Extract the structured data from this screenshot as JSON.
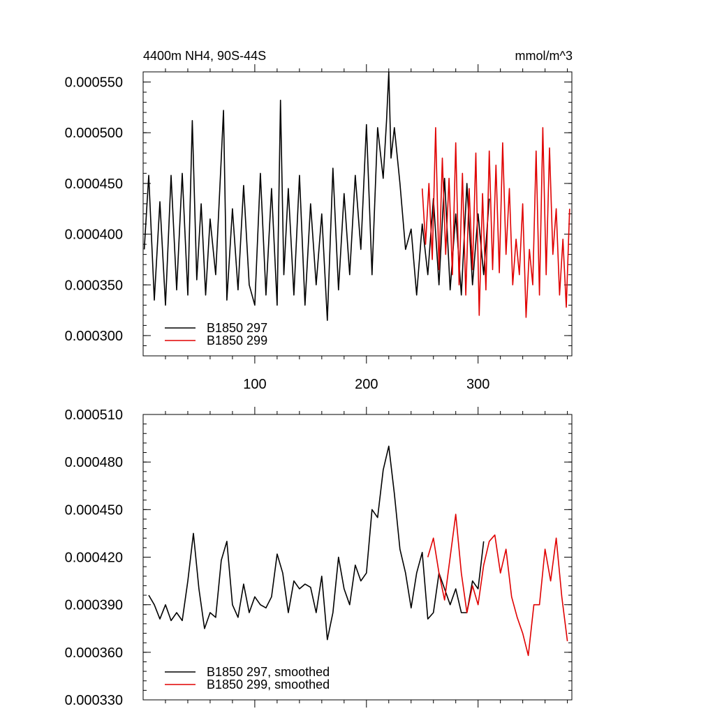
{
  "chart_data": [
    {
      "type": "line",
      "title_left": "4400m NH4, 90S-44S",
      "title_right": "mmol/m^3",
      "xlim": [
        0,
        384
      ],
      "ylim": [
        0.00028,
        0.00056
      ],
      "xticks": [
        100,
        200,
        300
      ],
      "xtick_labels": [
        "100",
        "200",
        "300"
      ],
      "yticks": [
        0.0003,
        0.00035,
        0.0004,
        0.00045,
        0.0005,
        0.00055
      ],
      "ytick_labels": [
        "0.000300",
        "0.000350",
        "0.000400",
        "0.000450",
        "0.000500",
        "0.000550"
      ],
      "legend_position": "bottom-left",
      "series": [
        {
          "name": "B1850 297",
          "color": "#000000",
          "x": [
            1,
            5,
            10,
            15,
            20,
            25,
            30,
            35,
            40,
            44,
            48,
            52,
            56,
            60,
            65,
            70,
            72,
            75,
            80,
            85,
            90,
            95,
            100,
            105,
            110,
            115,
            120,
            123,
            126,
            130,
            135,
            140,
            145,
            150,
            155,
            160,
            165,
            170,
            175,
            180,
            185,
            190,
            195,
            200,
            205,
            210,
            215,
            218,
            220,
            222,
            225,
            230,
            235,
            240,
            245,
            250,
            255,
            260,
            265,
            270,
            275,
            280,
            285,
            290,
            295,
            300,
            305,
            310
          ],
          "values": [
            0.000385,
            0.000458,
            0.000335,
            0.000432,
            0.00033,
            0.000458,
            0.000345,
            0.00046,
            0.00034,
            0.000512,
            0.000355,
            0.00043,
            0.00034,
            0.000415,
            0.00036,
            0.000475,
            0.000522,
            0.000335,
            0.000425,
            0.000345,
            0.000448,
            0.00035,
            0.00033,
            0.00046,
            0.00034,
            0.000445,
            0.00033,
            0.000532,
            0.00036,
            0.000445,
            0.00034,
            0.000458,
            0.00033,
            0.00043,
            0.00035,
            0.00042,
            0.000315,
            0.000465,
            0.000345,
            0.00044,
            0.00036,
            0.000458,
            0.000385,
            0.000508,
            0.00036,
            0.000505,
            0.000455,
            0.000512,
            0.00056,
            0.000475,
            0.000505,
            0.00045,
            0.000385,
            0.000405,
            0.00034,
            0.00041,
            0.00036,
            0.000435,
            0.00035,
            0.000455,
            0.000345,
            0.00042,
            0.00034,
            0.00045,
            0.00035,
            0.00042,
            0.00036,
            0.000435
          ]
        },
        {
          "name": "B1850 299",
          "color": "#e00000",
          "x": [
            250,
            253,
            256,
            259,
            262,
            265,
            268,
            271,
            274,
            277,
            280,
            283,
            286,
            289,
            292,
            295,
            298,
            301,
            304,
            307,
            310,
            313,
            316,
            319,
            322,
            325,
            328,
            331,
            334,
            337,
            340,
            343,
            346,
            349,
            352,
            355,
            358,
            361,
            364,
            367,
            370,
            373,
            376,
            379,
            382
          ],
          "values": [
            0.000445,
            0.00039,
            0.00045,
            0.000375,
            0.000505,
            0.000365,
            0.000475,
            0.00038,
            0.000455,
            0.00036,
            0.00049,
            0.00035,
            0.00046,
            0.00034,
            0.000445,
            0.000365,
            0.00048,
            0.00032,
            0.00044,
            0.000345,
            0.000482,
            0.000365,
            0.000468,
            0.000362,
            0.00049,
            0.00038,
            0.000445,
            0.00035,
            0.000395,
            0.00036,
            0.00043,
            0.000318,
            0.000385,
            0.00035,
            0.000482,
            0.00034,
            0.000505,
            0.00036,
            0.000485,
            0.00038,
            0.000425,
            0.00034,
            0.000395,
            0.000328,
            0.000425
          ]
        }
      ]
    },
    {
      "type": "line",
      "xlim": [
        0,
        384
      ],
      "ylim": [
        0.00033,
        0.00051
      ],
      "xticks": [
        100,
        200,
        300
      ],
      "yticks": [
        0.00033,
        0.00036,
        0.00039,
        0.00042,
        0.00045,
        0.00048,
        0.00051
      ],
      "ytick_labels": [
        "0.000330",
        "0.000360",
        "0.000390",
        "0.000420",
        "0.000450",
        "0.000480",
        "0.000510"
      ],
      "legend_position": "bottom-left",
      "series": [
        {
          "name": "B1850 297, smoothed",
          "color": "#000000",
          "x": [
            5,
            10,
            15,
            20,
            25,
            30,
            35,
            40,
            45,
            50,
            55,
            60,
            65,
            70,
            75,
            80,
            85,
            90,
            95,
            100,
            105,
            110,
            115,
            120,
            125,
            130,
            135,
            140,
            145,
            150,
            155,
            160,
            165,
            170,
            175,
            180,
            185,
            190,
            195,
            200,
            205,
            210,
            215,
            220,
            225,
            230,
            235,
            240,
            245,
            250,
            255,
            260,
            265,
            270,
            275,
            280,
            285,
            290,
            295,
            300,
            305
          ],
          "values": [
            0.000396,
            0.00039,
            0.000381,
            0.00039,
            0.00038,
            0.000385,
            0.00038,
            0.000405,
            0.000435,
            0.0004,
            0.000375,
            0.000385,
            0.000382,
            0.000418,
            0.00043,
            0.00039,
            0.000382,
            0.000403,
            0.000385,
            0.000395,
            0.00039,
            0.000388,
            0.000395,
            0.000422,
            0.00041,
            0.000385,
            0.000405,
            0.0004,
            0.000403,
            0.000401,
            0.000385,
            0.000408,
            0.000368,
            0.000385,
            0.00042,
            0.0004,
            0.00039,
            0.000415,
            0.000405,
            0.00041,
            0.00045,
            0.000445,
            0.000475,
            0.00049,
            0.00046,
            0.000425,
            0.00041,
            0.000388,
            0.00041,
            0.000423,
            0.000381,
            0.000385,
            0.00041,
            0.0004,
            0.00039,
            0.0004,
            0.000385,
            0.000385,
            0.000405,
            0.0004,
            0.00043
          ]
        },
        {
          "name": "B1850 299, smoothed",
          "color": "#e00000",
          "x": [
            255,
            260,
            265,
            270,
            275,
            280,
            285,
            290,
            295,
            300,
            305,
            310,
            315,
            320,
            325,
            330,
            335,
            340,
            345,
            350,
            355,
            360,
            365,
            370,
            375,
            380
          ],
          "values": [
            0.00042,
            0.000432,
            0.00041,
            0.000393,
            0.00042,
            0.000447,
            0.00041,
            0.000385,
            0.000402,
            0.00039,
            0.000415,
            0.00043,
            0.000434,
            0.00041,
            0.000425,
            0.000395,
            0.000382,
            0.000372,
            0.000358,
            0.00039,
            0.00039,
            0.000425,
            0.000405,
            0.000432,
            0.000395,
            0.000367
          ]
        }
      ]
    }
  ]
}
